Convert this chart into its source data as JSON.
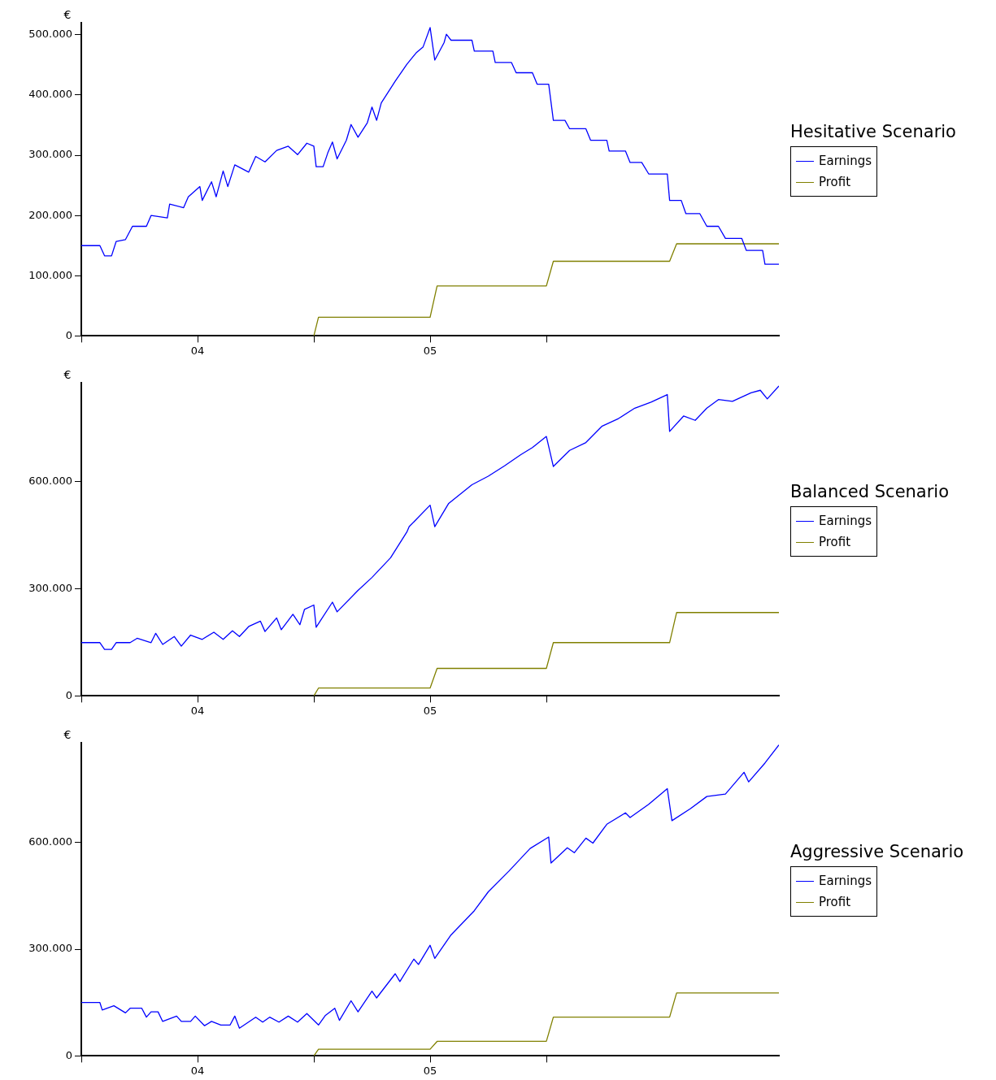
{
  "chart_data": [
    {
      "type": "line",
      "ylabel": "€",
      "legend_title": "Hesitative Scenario",
      "legend": "right",
      "grid": false,
      "marker": "none",
      "line_style": "solid",
      "xlim": [
        3.5,
        6.5
      ],
      "xticks": [
        {
          "value": 3.5,
          "label": null
        },
        {
          "value": 4,
          "label": "04"
        },
        {
          "value": 4.5,
          "label": null
        },
        {
          "value": 5,
          "label": "05"
        },
        {
          "value": 5.5,
          "label": null
        }
      ],
      "ylim": [
        0,
        520000
      ],
      "yticks": [
        {
          "value": 0,
          "label": "0"
        },
        {
          "value": 100000,
          "label": "100.000"
        },
        {
          "value": 200000,
          "label": "200.000"
        },
        {
          "value": 300000,
          "label": "300.000"
        },
        {
          "value": 400000,
          "label": "400.000"
        },
        {
          "value": 500000,
          "label": "500.000"
        }
      ],
      "series": [
        {
          "name": "Earnings",
          "color": "#0000ff",
          "x": [
            3.5,
            3.58,
            3.6,
            3.63,
            3.65,
            3.69,
            3.72,
            3.78,
            3.8,
            3.87,
            3.88,
            3.94,
            3.96,
            4.01,
            4.02,
            4.06,
            4.08,
            4.11,
            4.13,
            4.16,
            4.22,
            4.25,
            4.29,
            4.34,
            4.39,
            4.43,
            4.47,
            4.5,
            4.51,
            4.54,
            4.56,
            4.58,
            4.6,
            4.64,
            4.66,
            4.69,
            4.73,
            4.75,
            4.77,
            4.79,
            4.85,
            4.9,
            4.94,
            4.97,
            5.0,
            5.02,
            5.06,
            5.07,
            5.09,
            5.18,
            5.19,
            5.27,
            5.28,
            5.35,
            5.37,
            5.44,
            5.46,
            5.51,
            5.53,
            5.58,
            5.6,
            5.67,
            5.69,
            5.76,
            5.77,
            5.84,
            5.86,
            5.91,
            5.94,
            6.02,
            6.03,
            6.08,
            6.1,
            6.16,
            6.19,
            6.24,
            6.27,
            6.34,
            6.36,
            6.43,
            6.44,
            6.5
          ],
          "values": [
            150000,
            150000,
            133000,
            133000,
            157000,
            160000,
            182000,
            182000,
            200000,
            196000,
            219000,
            213000,
            231000,
            248000,
            225000,
            256000,
            231000,
            274000,
            248000,
            284000,
            272000,
            298000,
            289000,
            308000,
            315000,
            301000,
            320000,
            315000,
            281000,
            281000,
            304000,
            322000,
            294000,
            325000,
            351000,
            330000,
            354000,
            380000,
            358000,
            387000,
            423000,
            451000,
            470000,
            480000,
            512000,
            458000,
            487000,
            501000,
            491000,
            491000,
            473000,
            473000,
            454000,
            454000,
            437000,
            437000,
            418000,
            418000,
            358000,
            358000,
            344000,
            344000,
            325000,
            325000,
            307000,
            307000,
            288000,
            288000,
            269000,
            269000,
            225000,
            225000,
            203000,
            203000,
            182000,
            182000,
            162000,
            162000,
            142000,
            142000,
            119000,
            119000
          ]
        },
        {
          "name": "Profit",
          "color": "#808000",
          "x": [
            4.5,
            4.52,
            5.0,
            5.03,
            5.5,
            5.53,
            6.03,
            6.06,
            6.5
          ],
          "values": [
            0,
            31000,
            31000,
            83000,
            83000,
            124000,
            124000,
            153000,
            153000
          ]
        }
      ]
    },
    {
      "type": "line",
      "ylabel": "€",
      "legend_title": "Balanced Scenario",
      "legend": "right",
      "grid": false,
      "marker": "none",
      "line_style": "solid",
      "xlim": [
        3.5,
        6.5
      ],
      "xticks": [
        {
          "value": 3.5,
          "label": null
        },
        {
          "value": 4,
          "label": "04"
        },
        {
          "value": 4.5,
          "label": null
        },
        {
          "value": 5,
          "label": "05"
        },
        {
          "value": 5.5,
          "label": null
        }
      ],
      "ylim": [
        0,
        875000
      ],
      "yticks": [
        {
          "value": 0,
          "label": "0"
        },
        {
          "value": 300000,
          "label": "300.000"
        },
        {
          "value": 600000,
          "label": "600.000"
        }
      ],
      "series": [
        {
          "name": "Earnings",
          "color": "#0000ff",
          "x": [
            3.5,
            3.58,
            3.6,
            3.63,
            3.65,
            3.71,
            3.74,
            3.8,
            3.82,
            3.85,
            3.9,
            3.93,
            3.97,
            4.02,
            4.07,
            4.11,
            4.15,
            4.18,
            4.22,
            4.27,
            4.29,
            4.34,
            4.36,
            4.41,
            4.44,
            4.46,
            4.5,
            4.51,
            4.58,
            4.6,
            4.69,
            4.75,
            4.83,
            4.9,
            4.91,
            5.0,
            5.02,
            5.08,
            5.18,
            5.25,
            5.32,
            5.39,
            5.44,
            5.5,
            5.53,
            5.6,
            5.67,
            5.74,
            5.81,
            5.88,
            5.95,
            6.02,
            6.03,
            6.09,
            6.14,
            6.19,
            6.24,
            6.3,
            6.38,
            6.42,
            6.45,
            6.5
          ],
          "values": [
            149000,
            149000,
            130000,
            130000,
            149000,
            149000,
            161000,
            149000,
            175000,
            144000,
            166000,
            139000,
            170000,
            158000,
            178000,
            158000,
            182000,
            166000,
            194000,
            209000,
            180000,
            218000,
            185000,
            228000,
            199000,
            242000,
            254000,
            192000,
            262000,
            235000,
            295000,
            331000,
            386000,
            458000,
            473000,
            533000,
            473000,
            538000,
            590000,
            614000,
            643000,
            674000,
            694000,
            725000,
            641000,
            686000,
            708000,
            754000,
            775000,
            804000,
            821000,
            842000,
            739000,
            782000,
            770000,
            804000,
            828000,
            823000,
            847000,
            854000,
            830000,
            866000
          ]
        },
        {
          "name": "Profit",
          "color": "#808000",
          "x": [
            4.5,
            4.52,
            5.0,
            5.03,
            5.5,
            5.53,
            6.03,
            6.06,
            6.5
          ],
          "values": [
            0,
            22000,
            22000,
            77000,
            77000,
            149000,
            149000,
            233000,
            233000
          ]
        }
      ]
    },
    {
      "type": "line",
      "ylabel": "€",
      "legend_title": "Aggressive Scenario",
      "legend": "right",
      "grid": false,
      "marker": "none",
      "line_style": "solid",
      "xlim": [
        3.5,
        6.5
      ],
      "xticks": [
        {
          "value": 3.5,
          "label": null
        },
        {
          "value": 4,
          "label": "04"
        },
        {
          "value": 4.5,
          "label": null
        },
        {
          "value": 5,
          "label": "05"
        },
        {
          "value": 5.5,
          "label": null
        }
      ],
      "ylim": [
        0,
        880000
      ],
      "yticks": [
        {
          "value": 0,
          "label": "0"
        },
        {
          "value": 300000,
          "label": "300.000"
        },
        {
          "value": 600000,
          "label": "600.000"
        }
      ],
      "series": [
        {
          "name": "Earnings",
          "color": "#0000ff",
          "x": [
            3.5,
            3.58,
            3.59,
            3.64,
            3.69,
            3.71,
            3.76,
            3.78,
            3.8,
            3.83,
            3.85,
            3.91,
            3.93,
            3.97,
            3.99,
            4.03,
            4.06,
            4.1,
            4.14,
            4.16,
            4.18,
            4.25,
            4.28,
            4.31,
            4.35,
            4.39,
            4.43,
            4.47,
            4.52,
            4.55,
            4.59,
            4.61,
            4.66,
            4.69,
            4.75,
            4.77,
            4.85,
            4.87,
            4.93,
            4.95,
            5.0,
            5.02,
            5.09,
            5.19,
            5.25,
            5.34,
            5.43,
            5.51,
            5.52,
            5.59,
            5.62,
            5.67,
            5.7,
            5.76,
            5.84,
            5.86,
            5.94,
            6.02,
            6.04,
            6.12,
            6.19,
            6.27,
            6.35,
            6.37,
            6.44,
            6.5
          ],
          "values": [
            150000,
            150000,
            129000,
            141000,
            121000,
            134000,
            134000,
            109000,
            124000,
            124000,
            97000,
            112000,
            97000,
            97000,
            112000,
            85000,
            97000,
            87000,
            87000,
            112000,
            78000,
            109000,
            95000,
            109000,
            95000,
            112000,
            95000,
            119000,
            87000,
            114000,
            134000,
            100000,
            155000,
            124000,
            182000,
            163000,
            231000,
            209000,
            272000,
            257000,
            311000,
            274000,
            340000,
            408000,
            461000,
            520000,
            583000,
            615000,
            542000,
            585000,
            571000,
            612000,
            598000,
            651000,
            683000,
            670000,
            707000,
            751000,
            661000,
            695000,
            729000,
            736000,
            797000,
            770000,
            823000,
            874000
          ]
        },
        {
          "name": "Profit",
          "color": "#808000",
          "x": [
            4.5,
            4.52,
            5.0,
            5.03,
            5.5,
            5.53,
            6.03,
            6.06,
            6.5
          ],
          "values": [
            0,
            19000,
            19000,
            41000,
            41000,
            109000,
            109000,
            177000,
            177000
          ]
        }
      ]
    }
  ]
}
